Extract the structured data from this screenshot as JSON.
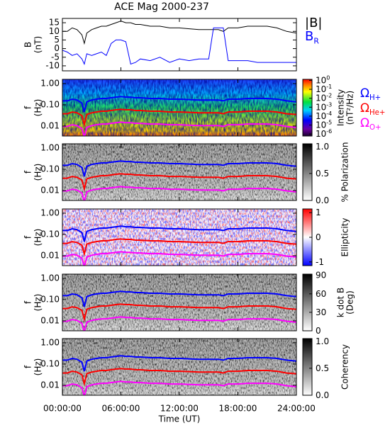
{
  "chart_data": [
    {
      "type": "line",
      "title": "ACE Mag 2000-237",
      "ylabel": [
        "B",
        "(nT)"
      ],
      "x": [
        0,
        0.5,
        1,
        1.5,
        2,
        2.25,
        2.5,
        3,
        3.5,
        4,
        4.5,
        5,
        5.5,
        6,
        6.5,
        7,
        7.5,
        8,
        9,
        10,
        11,
        12,
        13,
        14,
        15,
        15.5,
        16,
        16.5,
        17,
        17.5,
        18,
        19,
        20,
        21,
        22,
        23,
        24
      ],
      "xlim": [
        0,
        24
      ],
      "ylim": [
        -12.9,
        17.5
      ],
      "yticks": [
        -10,
        -5,
        0,
        5,
        10,
        15
      ],
      "series": [
        {
          "name": "|B|",
          "color": "#000000",
          "values": [
            10,
            10,
            12,
            11,
            8,
            3,
            9,
            11,
            12,
            13,
            13,
            14,
            15,
            16,
            15,
            15,
            14,
            14,
            13,
            13,
            12,
            12,
            11.5,
            11,
            11,
            11,
            11,
            10,
            12,
            12,
            12,
            13,
            13,
            13,
            12,
            10,
            9
          ]
        },
        {
          "name": "B",
          "name_subscript": "R",
          "color": "#0000ff",
          "values": [
            -1,
            -2,
            -4,
            -3,
            -6,
            -9,
            -3,
            -4,
            -3,
            -2,
            -4,
            3,
            5,
            5,
            4,
            -9,
            -8,
            -6,
            -7,
            -5,
            -8,
            -6,
            -7,
            -6,
            -6,
            12,
            12,
            12,
            -7,
            -7,
            -7,
            -7,
            -8,
            -8,
            -8,
            -8,
            -8
          ]
        }
      ]
    },
    {
      "type": "spectrogram",
      "ylabel": [
        "f",
        "(Hz)"
      ],
      "yscale": "log",
      "ylim": [
        0.0034,
        1.58
      ],
      "yticks": [
        {
          "value": 1,
          "label": "1.00"
        },
        {
          "value": 0.1,
          "label": "0.10"
        },
        {
          "value": 0.01,
          "label": "0.01"
        }
      ],
      "colorbar": {
        "label": [
          "Intensity",
          "(nT²/Hz)"
        ],
        "scale": "log",
        "colormap": "rainbow",
        "lim": [
          6e-07,
          1.3
        ],
        "ticks": [
          {
            "value": 1,
            "label": "10",
            "superscript": "0"
          },
          {
            "value": 0.1,
            "label": "10",
            "superscript": "-1"
          },
          {
            "value": 0.01,
            "label": "10",
            "superscript": "-2"
          },
          {
            "value": 0.001,
            "label": "10",
            "superscript": "-3"
          },
          {
            "value": 0.0001,
            "label": "10",
            "superscript": "-4"
          },
          {
            "value": 1e-05,
            "label": "10",
            "superscript": "-5"
          },
          {
            "value": 1e-06,
            "label": "10",
            "superscript": "-6"
          }
        ]
      },
      "series": [
        {
          "name": "Ω",
          "name_subscript": "H+",
          "color": "#0000ff",
          "values": [
            0.153,
            0.153,
            0.184,
            0.168,
            0.122,
            0.046,
            0.138,
            0.168,
            0.184,
            0.199,
            0.199,
            0.214,
            0.23,
            0.245,
            0.23,
            0.23,
            0.214,
            0.214,
            0.199,
            0.199,
            0.184,
            0.184,
            0.176,
            0.168,
            0.168,
            0.168,
            0.168,
            0.153,
            0.184,
            0.184,
            0.184,
            0.199,
            0.199,
            0.199,
            0.184,
            0.153,
            0.138
          ]
        },
        {
          "name": "Ω",
          "name_subscript": "He+",
          "color": "#ff0000",
          "values": [
            0.038,
            0.038,
            0.046,
            0.042,
            0.031,
            0.012,
            0.035,
            0.042,
            0.046,
            0.05,
            0.05,
            0.054,
            0.058,
            0.061,
            0.058,
            0.058,
            0.054,
            0.054,
            0.05,
            0.05,
            0.046,
            0.046,
            0.044,
            0.042,
            0.042,
            0.042,
            0.042,
            0.038,
            0.046,
            0.046,
            0.046,
            0.05,
            0.05,
            0.05,
            0.046,
            0.038,
            0.035
          ]
        },
        {
          "name": "Ω",
          "name_subscript": "O+",
          "color": "#ff00ff",
          "values": [
            0.0096,
            0.0096,
            0.0115,
            0.0105,
            0.0076,
            0.0029,
            0.0086,
            0.0105,
            0.0115,
            0.0124,
            0.0124,
            0.0134,
            0.0144,
            0.0153,
            0.0144,
            0.0144,
            0.0134,
            0.0134,
            0.0124,
            0.0124,
            0.0115,
            0.0115,
            0.011,
            0.0105,
            0.0105,
            0.0105,
            0.0105,
            0.0096,
            0.0115,
            0.0115,
            0.0115,
            0.0124,
            0.0124,
            0.0124,
            0.0115,
            0.0096,
            0.0086
          ]
        }
      ]
    },
    {
      "type": "spectrogram",
      "ylabel": [
        "f",
        "(Hz)"
      ],
      "yscale": "log",
      "ylim": [
        0.0034,
        1.58
      ],
      "yticks": [
        {
          "value": 1,
          "label": "1.00"
        },
        {
          "value": 0.1,
          "label": "0.10"
        },
        {
          "value": 0.01,
          "label": "0.01"
        }
      ],
      "colorbar": {
        "label": [
          "% Polarization"
        ],
        "scale": "linear",
        "colormap": "gray",
        "lim": [
          0,
          1.05
        ],
        "ticks": [
          {
            "value": 1,
            "label": "1.0"
          },
          {
            "value": 0.5,
            "label": "0.5"
          },
          {
            "value": 0,
            "label": "0.0"
          }
        ]
      }
    },
    {
      "type": "spectrogram",
      "ylabel": [
        "f",
        "(Hz)"
      ],
      "yscale": "log",
      "ylim": [
        0.0034,
        1.58
      ],
      "yticks": [
        {
          "value": 1,
          "label": "1.00"
        },
        {
          "value": 0.1,
          "label": "0.10"
        },
        {
          "value": 0.01,
          "label": "0.01"
        }
      ],
      "colorbar": {
        "label": [
          "Ellipticity"
        ],
        "scale": "linear",
        "colormap": "red-blue",
        "lim": [
          -1.15,
          1.15
        ],
        "ticks": [
          1,
          0,
          -1
        ]
      }
    },
    {
      "type": "spectrogram",
      "ylabel": [
        "f",
        "(Hz)"
      ],
      "yscale": "log",
      "ylim": [
        0.0034,
        1.58
      ],
      "yticks": [
        {
          "value": 1,
          "label": "1.00"
        },
        {
          "value": 0.1,
          "label": "0.10"
        },
        {
          "value": 0.01,
          "label": "0.01"
        }
      ],
      "colorbar": {
        "label": [
          "k dot B",
          "(Deg)"
        ],
        "scale": "linear",
        "colormap": "gray",
        "lim": [
          0,
          92
        ],
        "ticks": [
          90,
          60,
          30,
          0
        ]
      }
    },
    {
      "type": "spectrogram",
      "ylabel": [
        "f",
        "(Hz)"
      ],
      "yscale": "log",
      "ylim": [
        0.0034,
        1.58
      ],
      "yticks": [
        {
          "value": 1,
          "label": "1.00"
        },
        {
          "value": 0.1,
          "label": "0.10"
        },
        {
          "value": 0.01,
          "label": "0.01"
        }
      ],
      "colorbar": {
        "label": [
          "Coherency"
        ],
        "scale": "linear",
        "colormap": "gray",
        "lim": [
          0,
          1.05
        ],
        "ticks": [
          {
            "value": 1,
            "label": "1.0"
          },
          {
            "value": 0.5,
            "label": "0.5"
          },
          {
            "value": 0,
            "label": "0.0"
          }
        ]
      },
      "xlabel": "Time (UT)",
      "xticks": [
        {
          "value": 0,
          "label": "00:00:00"
        },
        {
          "value": 6,
          "label": "06:00:00"
        },
        {
          "value": 12,
          "label": "12:00:00"
        },
        {
          "value": 18,
          "label": "18:00:00"
        },
        {
          "value": 24,
          "label": "24:00:00"
        }
      ]
    }
  ]
}
